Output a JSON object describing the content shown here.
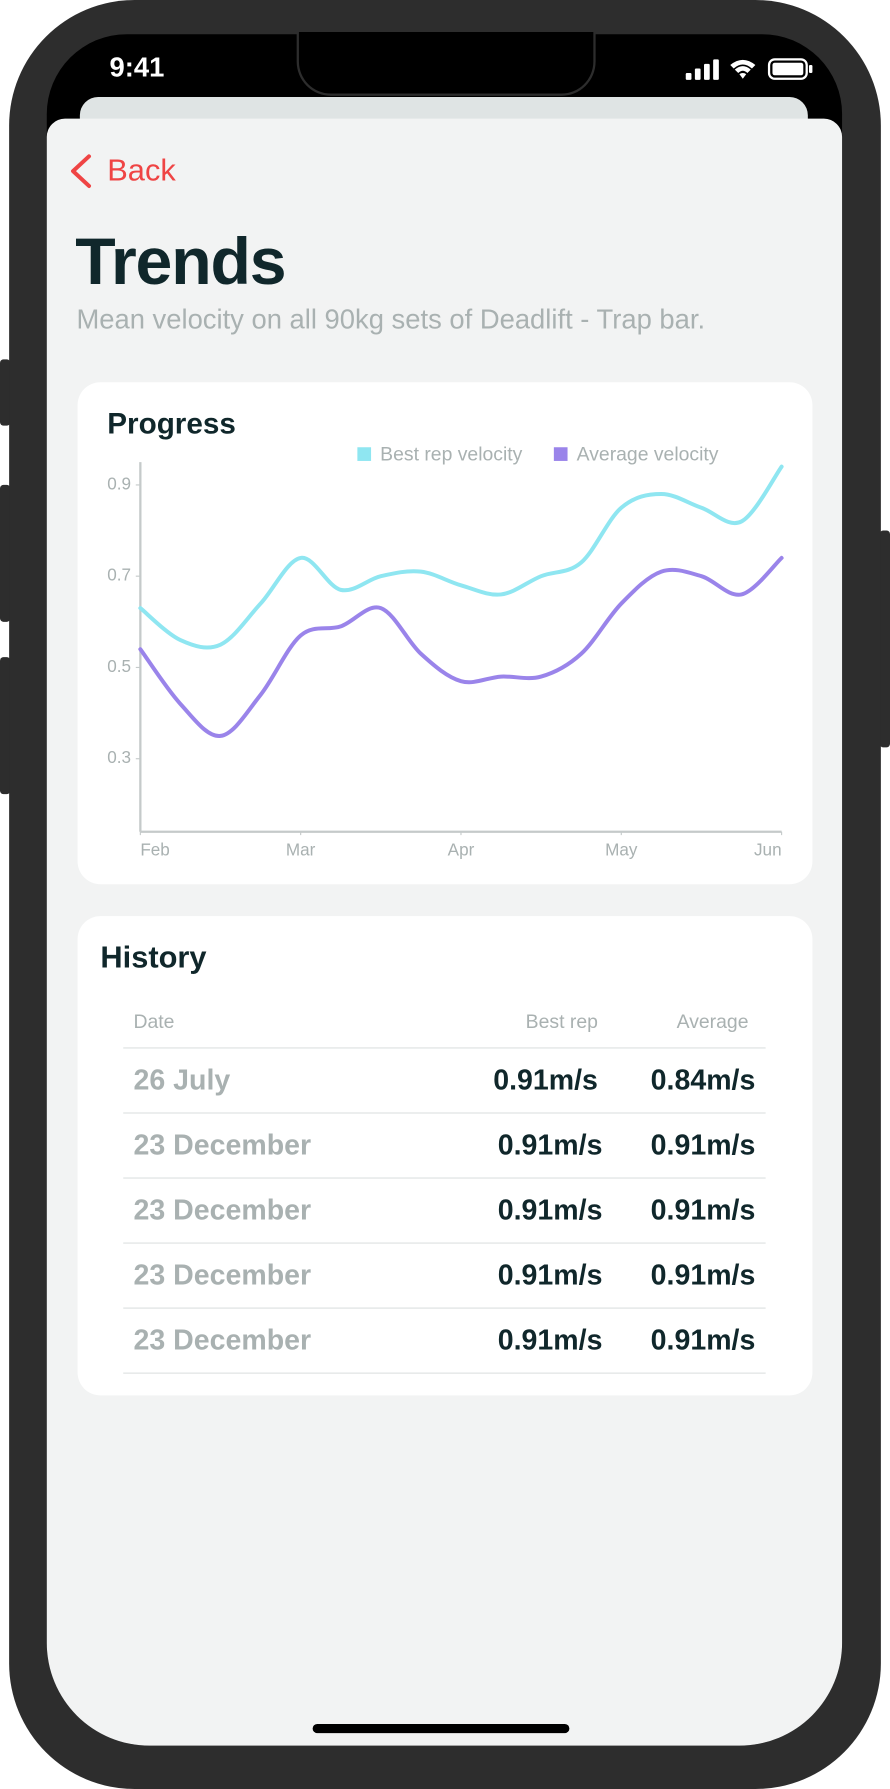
{
  "status_bar": {
    "time": "9:41"
  },
  "nav": {
    "back": "Back"
  },
  "header": {
    "title": "Trends",
    "subtitle": "Mean velocity on all 90kg sets of Deadlift - Trap bar."
  },
  "chart_data": {
    "type": "line",
    "title": "Progress",
    "x": [
      0,
      0.25,
      0.5,
      0.75,
      1,
      1.25,
      1.5,
      1.75,
      2,
      2.25,
      2.5,
      2.75,
      3,
      3.25,
      3.5,
      3.75,
      4
    ],
    "xlim": [
      0,
      4
    ],
    "xticks": [
      {
        "value": 0,
        "label": "Feb"
      },
      {
        "value": 1,
        "label": "Mar"
      },
      {
        "value": 2,
        "label": "Apr"
      },
      {
        "value": 3,
        "label": "May"
      },
      {
        "value": 4,
        "label": "Jun"
      }
    ],
    "ylim": [
      0.14,
      0.95
    ],
    "yticks": [
      0.3,
      0.5,
      0.7,
      0.9
    ],
    "series": [
      {
        "name": "Best rep velocity",
        "color": "#8fe6f1",
        "values": [
          0.63,
          0.56,
          0.55,
          0.64,
          0.74,
          0.67,
          0.7,
          0.71,
          0.68,
          0.66,
          0.7,
          0.73,
          0.85,
          0.88,
          0.85,
          0.82,
          0.94
        ]
      },
      {
        "name": "Average velocity",
        "color": "#9a84ea",
        "values": [
          0.54,
          0.42,
          0.35,
          0.44,
          0.57,
          0.59,
          0.63,
          0.53,
          0.47,
          0.48,
          0.48,
          0.53,
          0.64,
          0.71,
          0.7,
          0.66,
          0.74
        ]
      }
    ],
    "legend": "top-right"
  },
  "history": {
    "title": "History",
    "columns": [
      "Date",
      "Best rep",
      "Average"
    ],
    "rows": [
      [
        "26 July",
        "0.91m/s",
        "0.84m/s"
      ],
      [
        "23 December",
        "0.91m/s",
        "0.91m/s"
      ],
      [
        "23 December",
        "0.91m/s",
        "0.91m/s"
      ],
      [
        "23 December",
        "0.91m/s",
        "0.91m/s"
      ],
      [
        "23 December",
        "0.91m/s",
        "0.91m/s"
      ]
    ]
  }
}
